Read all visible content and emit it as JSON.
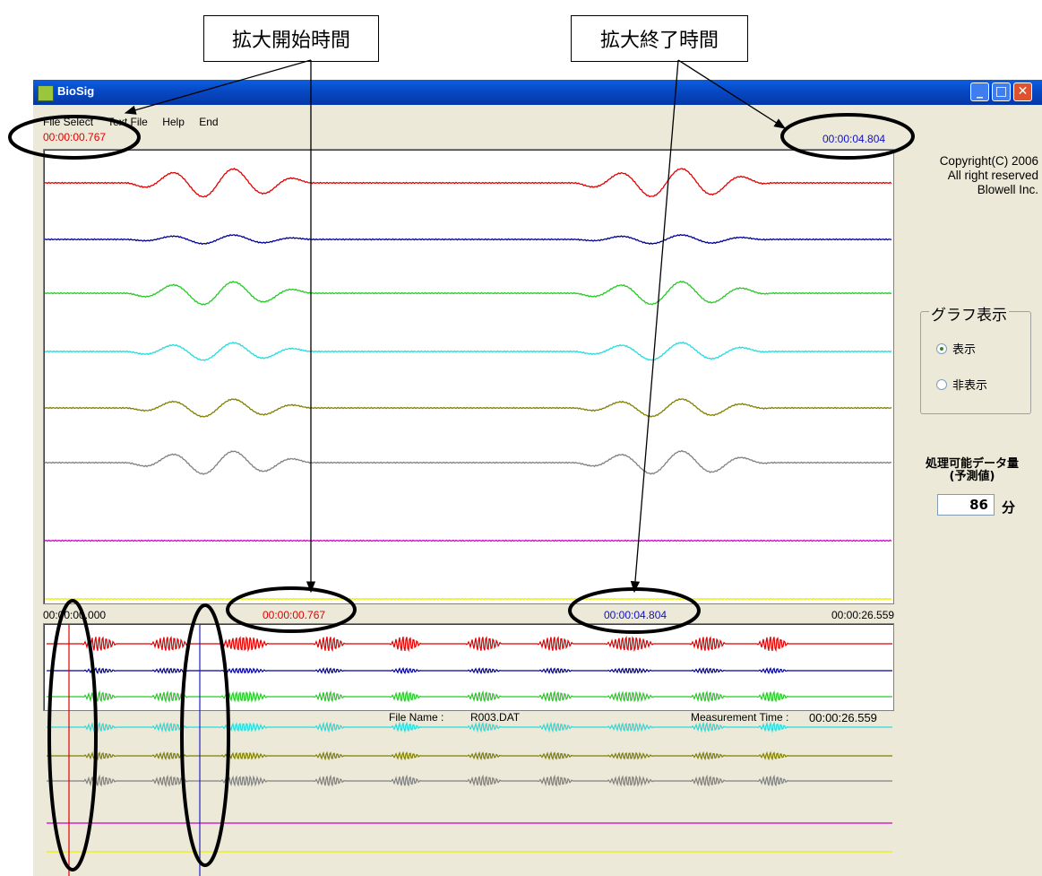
{
  "annotations": {
    "start_label": "拡大開始時間",
    "end_label": "拡大終了時間"
  },
  "window": {
    "title": "BioSig",
    "controls": {
      "minimize": "_",
      "maximize": "□",
      "close": "✕"
    }
  },
  "menu": [
    "File Select",
    "Text File",
    "Help",
    "End"
  ],
  "zoom_view": {
    "start_time": "00:00:00.767",
    "end_time": "00:00:04.804"
  },
  "overview": {
    "total_start": "00:00:00.000",
    "zoom_start": "00:00:00.767",
    "zoom_end": "00:00:04.804",
    "total_end": "00:00:26.559"
  },
  "sidebar": {
    "copyright_lines": [
      "Copyright(C) 2006",
      "All right reserved",
      "Blowell Inc."
    ],
    "graph_group_title": "グラフ表示",
    "radio_show": "表示",
    "radio_hide": "非表示",
    "data_label_line1": "処理可能データ量",
    "data_label_line2": "(予測値)",
    "data_value": "86",
    "data_unit": "分"
  },
  "status": {
    "file_name_label": "File Name :",
    "file_name": "R003.DAT",
    "measurement_label": "Measurement Time :",
    "measurement_time": "00:00:26.559"
  },
  "colors": {
    "ch1": "#e00000",
    "ch2": "#000099",
    "ch3": "#22cc22",
    "ch4": "#22dddd",
    "ch5": "#808000",
    "ch6": "#808080",
    "ch7": "#cc00cc",
    "ch8": "#eeee00"
  }
}
